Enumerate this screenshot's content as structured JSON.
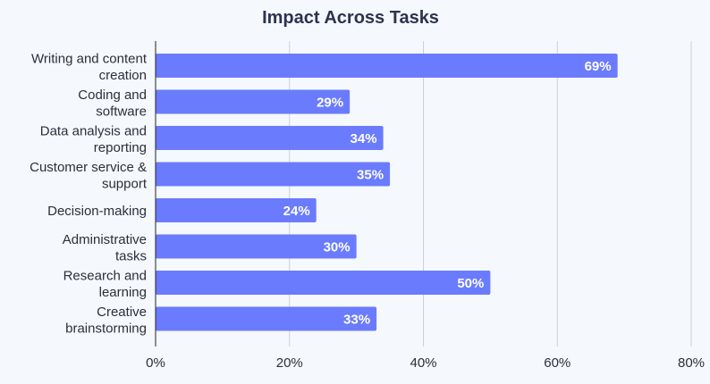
{
  "chart_data": {
    "type": "bar",
    "orientation": "horizontal",
    "title": "Impact Across Tasks",
    "categories": [
      "Writing and content creation",
      "Coding and software",
      "Data analysis and reporting",
      "Customer service & support",
      "Decision-making",
      "Administrative tasks",
      "Research and learning",
      "Creative brainstorming"
    ],
    "values": [
      69,
      29,
      34,
      35,
      24,
      30,
      50,
      33
    ],
    "value_labels": [
      "69%",
      "29%",
      "34%",
      "35%",
      "24%",
      "30%",
      "50%",
      "33%"
    ],
    "xlim": [
      0,
      80
    ],
    "x_ticks": [
      0,
      20,
      40,
      60,
      80
    ],
    "x_tick_labels": [
      "0%",
      "20%",
      "40%",
      "60%",
      "80%"
    ],
    "xlabel": "",
    "ylabel": "",
    "grid": "vertical",
    "bar_color": "#6b7bfd"
  }
}
